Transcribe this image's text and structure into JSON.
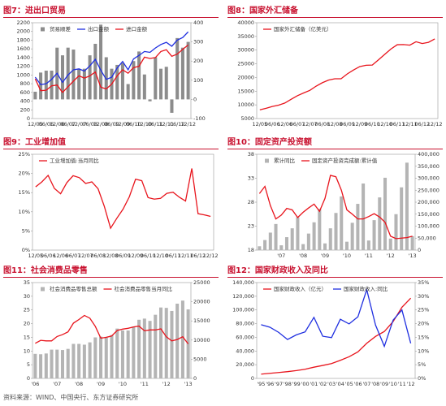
{
  "chart_data": [
    {
      "type": "combo",
      "title": "图7：进出口贸易",
      "legend": "top-left",
      "categories": [
        "12/05",
        null,
        "06/06",
        null,
        "12/06",
        null,
        "06/07",
        null,
        "12/07",
        null,
        "06/08",
        null,
        "12/08",
        null,
        "06/09",
        null,
        "12/09",
        null,
        "06/10",
        null,
        "12/10",
        null,
        "06/11",
        null,
        "12/11",
        null,
        "06/12",
        null,
        "12/12"
      ],
      "series": [
        {
          "name": "贸易顺差",
          "type": "bar",
          "axis": "y2",
          "color": "#8c8c8c",
          "values": [
            40,
            140,
            150,
            150,
            270,
            230,
            270,
            260,
            160,
            160,
            230,
            290,
            390,
            220,
            160,
            180,
            190,
            80,
            200,
            250,
            130,
            -10,
            220,
            160,
            170,
            -70,
            320,
            270,
            300
          ]
        },
        {
          "name": "出口金额",
          "type": "line",
          "color": "#1f2fe0",
          "values": [
            950,
            780,
            800,
            900,
            1040,
            830,
            1000,
            1120,
            1140,
            1090,
            1210,
            1360,
            1110,
            900,
            950,
            1160,
            1310,
            1120,
            1370,
            1450,
            1540,
            1520,
            1620,
            1700,
            1750,
            1660,
            1800,
            1860,
            1990
          ]
        },
        {
          "name": "进口金额",
          "type": "line",
          "color": "#e8141c",
          "values": [
            910,
            640,
            650,
            750,
            770,
            600,
            730,
            860,
            980,
            930,
            980,
            1070,
            720,
            680,
            790,
            980,
            1120,
            1040,
            1170,
            1200,
            1410,
            1380,
            1400,
            1540,
            1580,
            1430,
            1480,
            1590,
            1690
          ]
        }
      ],
      "ylim": [
        0,
        2200
      ],
      "yticks": [
        0,
        200,
        400,
        600,
        800,
        1000,
        1200,
        1400,
        1600,
        1800,
        2000,
        2200
      ],
      "y2lim": [
        -100,
        400
      ],
      "y2ticks": [
        -100,
        0,
        100,
        200,
        300,
        400
      ]
    },
    {
      "type": "line",
      "title": "图8：国家外汇储备",
      "legend": "top-left",
      "categories": [
        "12/05",
        null,
        "06/06",
        null,
        "12/06",
        null,
        "06/07",
        null,
        "12/07",
        null,
        "06/08",
        null,
        "12/08",
        null,
        "06/09",
        null,
        "12/09",
        null,
        "06/10",
        null,
        "12/10",
        null,
        "06/11",
        null,
        "12/11",
        null,
        "06/12",
        null,
        "12/12"
      ],
      "series": [
        {
          "name": "国家外汇储备（亿美元）",
          "type": "line",
          "color": "#e8141c",
          "values": [
            8189,
            8750,
            9411,
            9879,
            10663,
            12020,
            13326,
            14336,
            15282,
            16822,
            18088,
            19056,
            19537,
            19537,
            21316,
            22726,
            23992,
            24471,
            24543,
            26483,
            28473,
            30447,
            31975,
            32017,
            31811,
            33050,
            32400,
            32850,
            34100
          ]
        }
      ],
      "ylim": [
        5000,
        40000
      ],
      "yticks": [
        5000,
        10000,
        15000,
        20000,
        25000,
        30000,
        35000,
        40000
      ]
    },
    {
      "type": "line",
      "title": "图9：工业增加值",
      "legend": "top-left",
      "categories": [
        "12/05",
        null,
        "06/06",
        null,
        "12/06",
        null,
        "06/07",
        null,
        "12/07",
        null,
        "06/08",
        null,
        "12/08",
        null,
        "06/09",
        null,
        "12/09",
        null,
        "06/10",
        null,
        "12/10",
        null,
        "06/11",
        null,
        "12/11",
        null,
        "06/12",
        null,
        "12/12"
      ],
      "series": [
        {
          "name": "工业增加值:当月同比",
          "type": "line",
          "color": "#e8141c",
          "values": [
            16.5,
            17.8,
            19.5,
            16.1,
            14.7,
            17.6,
            19.4,
            18.9,
            17.4,
            17.8,
            16.0,
            11.4,
            5.7,
            8.3,
            10.7,
            13.9,
            18.5,
            18.1,
            13.7,
            13.3,
            13.5,
            14.8,
            15.1,
            13.8,
            12.8,
            21.3,
            9.5,
            9.2,
            8.8
          ]
        }
      ],
      "ylim": [
        0,
        25
      ],
      "yticks": [
        {
          "value": 0,
          "label": "0%"
        },
        {
          "value": 5,
          "label": "5%"
        },
        {
          "value": 10,
          "label": "10%"
        },
        {
          "value": 15,
          "label": "15%"
        },
        {
          "value": 20,
          "label": "20%"
        },
        {
          "value": 25,
          "label": "25%"
        }
      ]
    },
    {
      "type": "combo",
      "title": "图10：固定资产投资额",
      "legend": "top-left",
      "categories": [
        null,
        null,
        null,
        null,
        "'07",
        null,
        null,
        null,
        "'08",
        null,
        null,
        null,
        "'09",
        null,
        null,
        null,
        "'10",
        null,
        null,
        null,
        "'11",
        null,
        null,
        null,
        "'12",
        null,
        null,
        null,
        "'13"
      ],
      "series": [
        {
          "name": "累计同比",
          "type": "bar",
          "axis": "y2",
          "color": "#b4b4b4",
          "values": [
            16000,
            42000,
            73000,
            109000,
            20000,
            54000,
            91000,
            137000,
            25000,
            69000,
            116000,
            172000,
            28000,
            91000,
            155000,
            224000,
            35000,
            114000,
            193000,
            278000,
            40000,
            125000,
            220000,
            302000,
            48000,
            150000,
            262000,
            365000,
            58000
          ]
        },
        {
          "name": "固定资产投资完成额:累计值",
          "type": "line",
          "color": "#e8141c",
          "values": [
            29.8,
            31.3,
            27.3,
            24.5,
            25.3,
            26.7,
            26.4,
            24.8,
            25.9,
            26.8,
            27.6,
            26.1,
            28.8,
            33.6,
            33.3,
            30.5,
            26.4,
            25.5,
            24.5,
            24.5,
            25.0,
            25.6,
            24.9,
            23.8,
            20.9,
            20.4,
            20.5,
            20.6,
            20.9
          ]
        }
      ],
      "ylim": [
        18,
        38
      ],
      "yticks": [
        18,
        23,
        28,
        33,
        38
      ],
      "y2lim": [
        0,
        400000
      ],
      "y2ticks": [
        0,
        {
          "value": 50000,
          "label": "50,000"
        },
        {
          "value": 100000,
          "label": "100,000"
        },
        {
          "value": 150000,
          "label": "150,000"
        },
        {
          "value": 200000,
          "label": "200,000"
        },
        {
          "value": 250000,
          "label": "250,000"
        },
        {
          "value": 300000,
          "label": "300,000"
        },
        {
          "value": 350000,
          "label": "350,000"
        },
        {
          "value": 400000,
          "label": "400,000"
        }
      ]
    },
    {
      "type": "combo",
      "title": "图11：社会消费品零售",
      "legend": "top-left",
      "categories": [
        "'06",
        null,
        null,
        null,
        "'07",
        null,
        null,
        null,
        "'08",
        null,
        null,
        null,
        "'09",
        null,
        null,
        null,
        "'10",
        null,
        null,
        null,
        "'11",
        null,
        null,
        null,
        "'12",
        null,
        null,
        null,
        "'13"
      ],
      "series": [
        {
          "name": "社会消费品零售总额",
          "type": "bar",
          "axis": "y2",
          "color": "#b4b4b4",
          "values": [
            6400,
            6300,
            6500,
            7500,
            7500,
            7400,
            7700,
            9000,
            9000,
            8800,
            9400,
            10700,
            10900,
            10600,
            11300,
            13000,
            12500,
            12500,
            13500,
            15300,
            15600,
            15000,
            16600,
            18500,
            18400,
            17600,
            19500,
            20300,
            18000
          ]
        },
        {
          "name": "社会消费品零售当月同比",
          "type": "line",
          "color": "#e8141c",
          "values": [
            12.8,
            13.9,
            13.7,
            13.7,
            15.3,
            16.0,
            17.0,
            20.2,
            21.5,
            23.0,
            22.0,
            19.0,
            14.7,
            15.0,
            15.5,
            17.5,
            18.0,
            18.3,
            18.8,
            19.1,
            17.4,
            17.7,
            17.7,
            18.1,
            15.2,
            13.7,
            14.2,
            15.2,
            12.6
          ]
        }
      ],
      "ylim": [
        0,
        35
      ],
      "yticks": [
        0,
        5,
        10,
        15,
        20,
        25,
        30,
        35
      ],
      "y2lim": [
        0,
        25000
      ],
      "y2ticks": [
        0,
        5000,
        10000,
        15000,
        20000,
        25000
      ]
    },
    {
      "type": "line",
      "title": "图12：国家财政收入及同比",
      "legend": "top-left",
      "categories": [
        "'95",
        "'96",
        "'97",
        "'98",
        "'99",
        "'00",
        "'01",
        "'02",
        "'03",
        "'04",
        "'05",
        "'06",
        "'07",
        "'08",
        "'09",
        "'10",
        "'11",
        "'12"
      ],
      "series": [
        {
          "name": "国家财政收入（亿元）",
          "type": "line",
          "color": "#e8141c",
          "values": [
            6242,
            7408,
            8651,
            9876,
            11444,
            13395,
            16386,
            18904,
            21715,
            26396,
            31649,
            38760,
            51322,
            61330,
            68518,
            83102,
            103874,
            117254
          ]
        },
        {
          "name": "国家财政收入:同比",
          "type": "line",
          "axis": "y2",
          "color": "#1f2fe0",
          "values": [
            19.6,
            18.7,
            16.8,
            14.2,
            15.9,
            17.0,
            22.3,
            15.4,
            14.9,
            21.6,
            19.9,
            22.5,
            32.4,
            19.5,
            11.7,
            21.3,
            25.0,
            12.8
          ]
        }
      ],
      "ylim": [
        0,
        140000
      ],
      "yticks": [
        0,
        {
          "value": 20000,
          "label": "20,000"
        },
        {
          "value": 40000,
          "label": "40,000"
        },
        {
          "value": 60000,
          "label": "60,000"
        },
        {
          "value": 80000,
          "label": "80,000"
        },
        {
          "value": 100000,
          "label": "100,000"
        },
        {
          "value": 120000,
          "label": "120,000"
        },
        {
          "value": 140000,
          "label": "140,000"
        }
      ],
      "y2lim": [
        0,
        35
      ],
      "y2ticks": [
        {
          "value": 0,
          "label": "0%"
        },
        {
          "value": 5,
          "label": "5%"
        },
        {
          "value": 10,
          "label": "10%"
        },
        {
          "value": 15,
          "label": "15%"
        },
        {
          "value": 20,
          "label": "20%"
        },
        {
          "value": 25,
          "label": "25%"
        },
        {
          "value": 30,
          "label": "30%"
        },
        {
          "value": 35,
          "label": "35%"
        }
      ]
    }
  ],
  "source": "资料来源：WIND、中国央行、东方证券研究所"
}
